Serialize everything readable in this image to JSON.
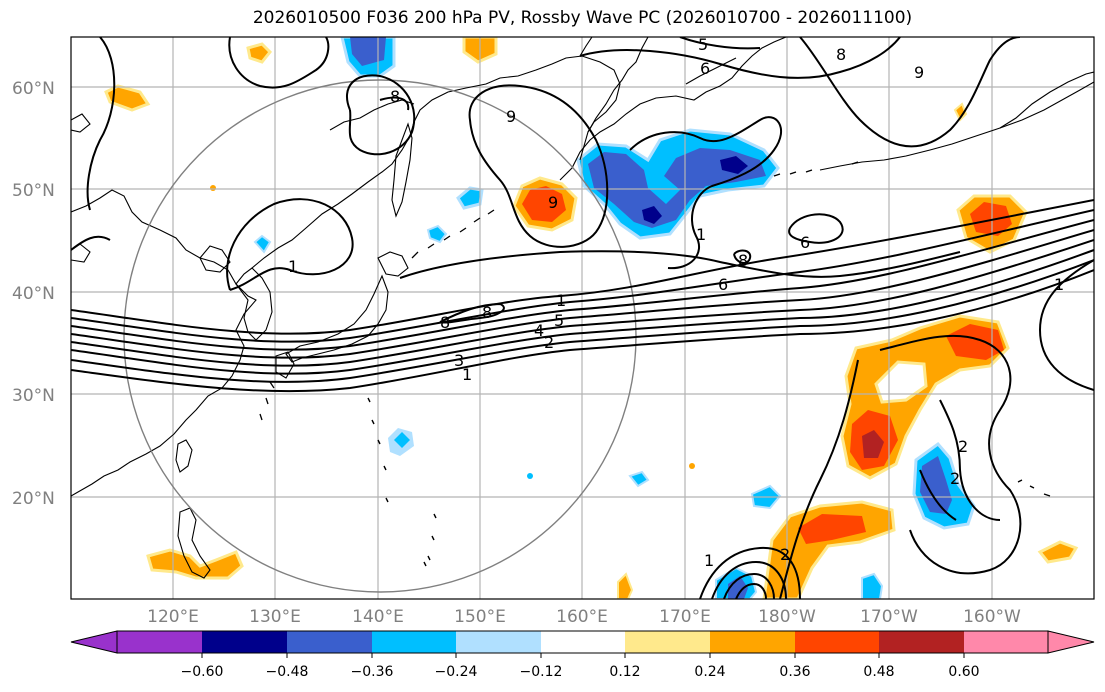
{
  "title": "2026010500 F036 200 hPa PV, Rossby Wave PC (2026010700 - 2026011100)",
  "axes": {
    "lat_labels": [
      "60°N",
      "50°N",
      "40°N",
      "30°N",
      "20°N"
    ],
    "lon_labels": [
      "120°E",
      "130°E",
      "140°E",
      "150°E",
      "160°E",
      "170°E",
      "180°W",
      "170°W",
      "160°W"
    ]
  },
  "colorbar": {
    "ticks": [
      "−0.60",
      "−0.48",
      "−0.36",
      "−0.24",
      "−0.12",
      "0.12",
      "0.24",
      "0.36",
      "0.48",
      "0.60"
    ],
    "colors": [
      "#9932cc",
      "#00008b",
      "#3a5fcd",
      "#00bfff",
      "#b0e0ff",
      "#ffffff",
      "#ffe98c",
      "#ffa500",
      "#ff4500",
      "#b22222",
      "#ff88aa"
    ]
  },
  "contour_labels": [
    "5",
    "6",
    "9",
    "9",
    "8",
    "8",
    "9",
    "1",
    "6",
    "8",
    "6",
    "8",
    "8",
    "1",
    "5",
    "4",
    "2",
    "3",
    "1",
    "1",
    "2",
    "2",
    "1",
    "2",
    "1"
  ],
  "colors": {
    "coastline": "#000000",
    "gridline": "#b4b4b4",
    "contour": "#000000",
    "circle": "#808080"
  }
}
